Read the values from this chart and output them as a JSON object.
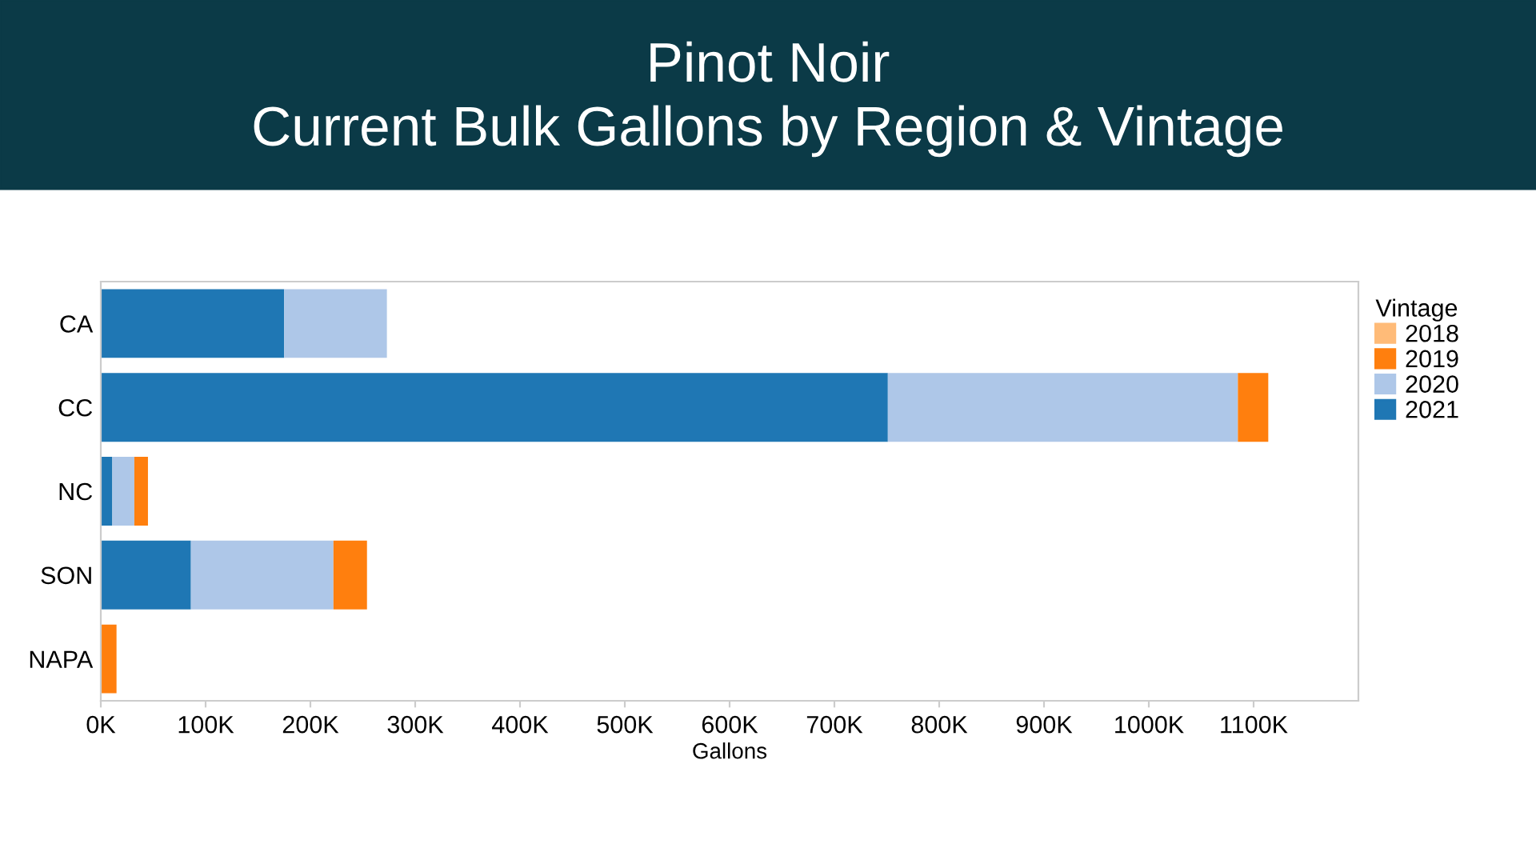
{
  "chart_data": {
    "type": "bar",
    "orientation": "horizontal",
    "stacked": true,
    "title": "Pinot Noir\nCurrent Bulk Gallons by Region & Vintage",
    "xlabel": "Gallons",
    "legend_title": "Vintage",
    "legend": "top right",
    "grid": false,
    "categories": [
      "CA",
      "CC",
      "NC",
      "SON",
      "NAPA"
    ],
    "series": [
      {
        "name": "2021",
        "color": "#1f77b4",
        "values": [
          175000,
          751000,
          11000,
          86000,
          null
        ]
      },
      {
        "name": "2020",
        "color": "#aec7e8",
        "values": [
          98000,
          334000,
          21000,
          136000,
          null
        ]
      },
      {
        "name": "2019",
        "color": "#ff7f0e",
        "values": [
          null,
          29000,
          13000,
          32000,
          15000
        ]
      },
      {
        "name": "2018",
        "color": "#ffbb78",
        "values": [
          null,
          null,
          null,
          null,
          null
        ]
      }
    ],
    "xlim": [
      0,
      1200000
    ],
    "xticks": [
      {
        "value": 0,
        "label": "0K"
      },
      {
        "value": 100000,
        "label": "100K"
      },
      {
        "value": 200000,
        "label": "200K"
      },
      {
        "value": 300000,
        "label": "300K"
      },
      {
        "value": 400000,
        "label": "400K"
      },
      {
        "value": 500000,
        "label": "500K"
      },
      {
        "value": 600000,
        "label": "600K"
      },
      {
        "value": 700000,
        "label": "700K"
      },
      {
        "value": 800000,
        "label": "800K"
      },
      {
        "value": 900000,
        "label": "900K"
      },
      {
        "value": 1000000,
        "label": "1000K"
      },
      {
        "value": 1100000,
        "label": "1100K"
      }
    ]
  }
}
